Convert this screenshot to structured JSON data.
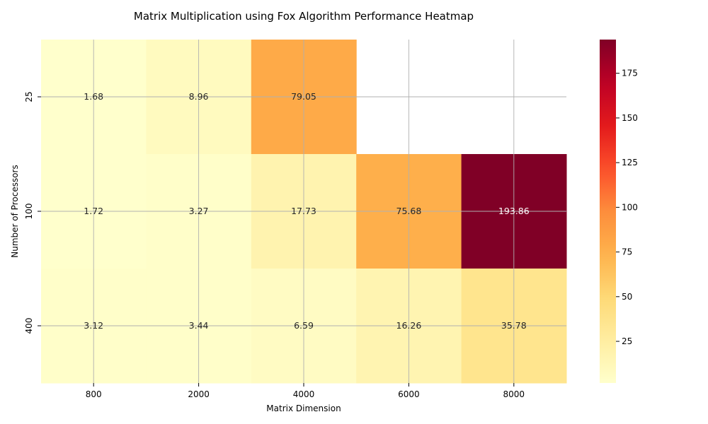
{
  "chart_data": {
    "type": "heatmap",
    "title": "Matrix Multiplication using Fox Algorithm Performance Heatmap",
    "xlabel": "Matrix Dimension",
    "ylabel": "Number of Processors",
    "x_categories": [
      "800",
      "2000",
      "4000",
      "6000",
      "8000"
    ],
    "y_categories": [
      "25",
      "100",
      "400"
    ],
    "values": [
      [
        1.68,
        8.96,
        79.05,
        null,
        null
      ],
      [
        1.72,
        3.27,
        17.73,
        75.68,
        193.86
      ],
      [
        3.12,
        3.44,
        6.59,
        16.26,
        35.78
      ]
    ],
    "colorbar": {
      "colormap": "YlOrRd",
      "min": 1.68,
      "max": 193.86,
      "ticks": [
        25,
        50,
        75,
        100,
        125,
        150,
        175
      ]
    },
    "grid": true
  }
}
